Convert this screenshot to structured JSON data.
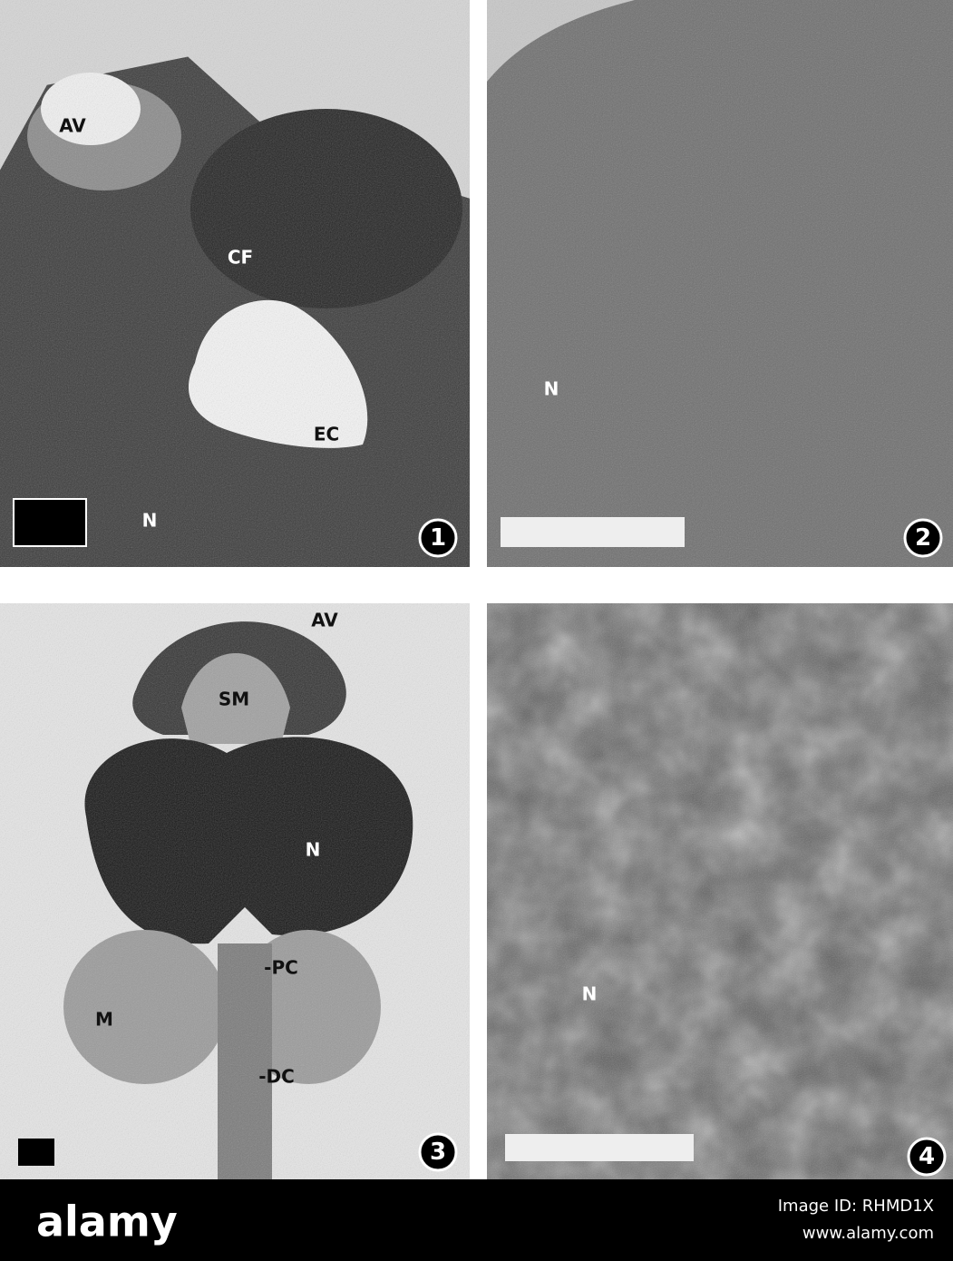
{
  "figure": {
    "panels": [
      {
        "number": "1",
        "labels": [
          "AV",
          "CF",
          "EC",
          "N"
        ]
      },
      {
        "number": "2",
        "labels": [
          "N"
        ]
      },
      {
        "number": "3",
        "labels": [
          "AV",
          "SM",
          "N",
          "-PC",
          "M",
          "-DC"
        ]
      },
      {
        "number": "4",
        "labels": [
          "N"
        ]
      }
    ]
  },
  "footer": {
    "logo": "alamy",
    "image_id": "Image ID: RHMD1X",
    "url": "www.alamy.com"
  }
}
